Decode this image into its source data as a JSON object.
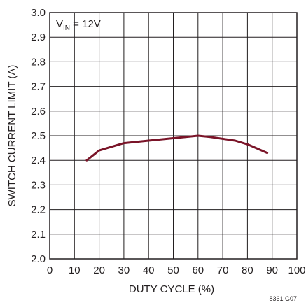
{
  "chart_data": {
    "type": "line",
    "xlabel": "DUTY CYCLE (%)",
    "ylabel": "SWITCH CURRENT LIMIT (A)",
    "xlim": [
      0,
      100
    ],
    "ylim": [
      2.0,
      3.0
    ],
    "x_ticks": [
      "0",
      "10",
      "20",
      "30",
      "40",
      "50",
      "60",
      "70",
      "80",
      "90",
      "100"
    ],
    "y_ticks": [
      "2.0",
      "2.1",
      "2.2",
      "2.3",
      "2.4",
      "2.5",
      "2.6",
      "2.7",
      "2.8",
      "2.9",
      "3.0"
    ],
    "grid": true,
    "annotation": {
      "prefix": "V",
      "subscript": "IN",
      "suffix": " = 12V"
    },
    "figure_id": "8361 G07",
    "line_color": "#7a1428",
    "series": [
      {
        "x": [
          15,
          20,
          30,
          40,
          50,
          60,
          65,
          75,
          80,
          88
        ],
        "y": [
          2.4,
          2.44,
          2.47,
          2.48,
          2.49,
          2.5,
          2.495,
          2.48,
          2.465,
          2.43
        ]
      }
    ]
  }
}
